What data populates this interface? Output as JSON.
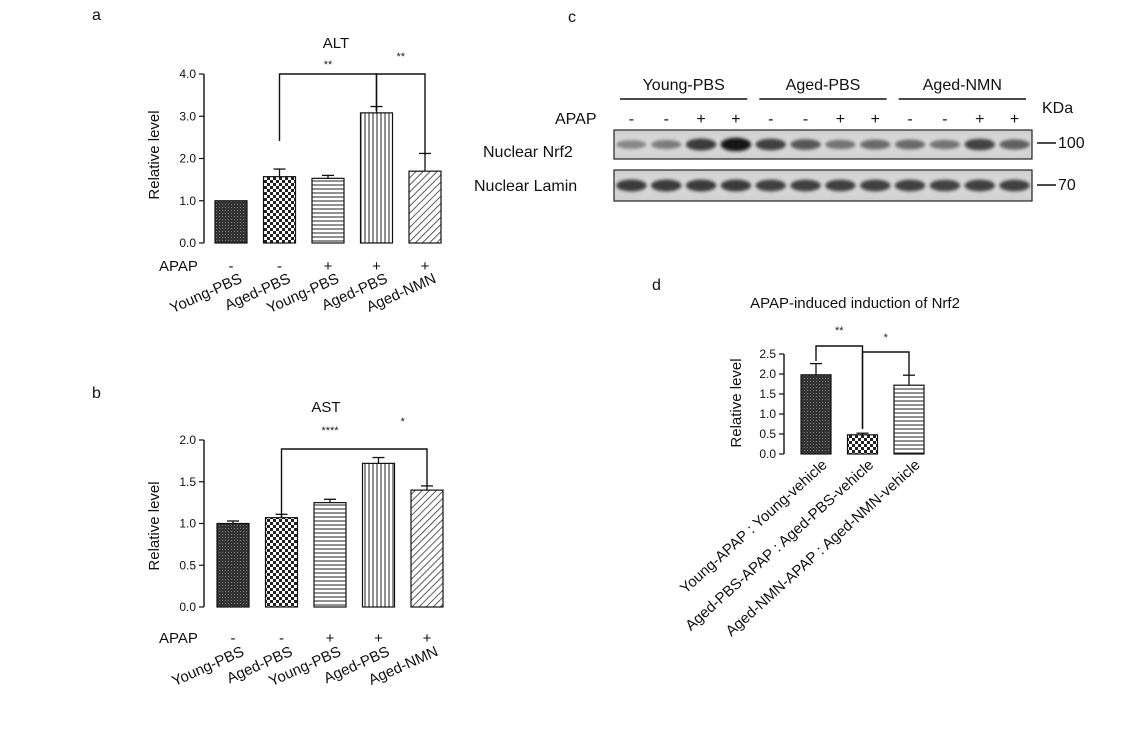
{
  "chart_data": [
    {
      "id": "a",
      "type": "bar",
      "panel_label": "a",
      "title": "ALT",
      "ylabel": "Relative level",
      "ylim": [
        0,
        4
      ],
      "yticks": [
        "0.0",
        "1.0",
        "2.0",
        "3.0",
        "4.0"
      ],
      "yticks_values": [
        0,
        1,
        2,
        3,
        4
      ],
      "categories": [
        "Young-PBS",
        "Aged-PBS",
        "Young-PBS",
        "Aged-PBS",
        "Aged-NMN"
      ],
      "values": [
        1.0,
        1.57,
        1.53,
        3.08,
        1.7
      ],
      "errors": [
        0,
        0.18,
        0.07,
        0.15,
        0.42
      ],
      "patterns": [
        "dense",
        "check",
        "hlines",
        "vlines",
        "diag"
      ],
      "treatment_label": "APAP",
      "treatment": [
        "-",
        "-",
        "+",
        "+",
        "+"
      ],
      "significance": [
        {
          "from": 1,
          "to": 3,
          "label": "**"
        },
        {
          "from": 3,
          "to": 4,
          "label": "**"
        }
      ]
    },
    {
      "id": "b",
      "type": "bar",
      "panel_label": "b",
      "title": "AST",
      "ylabel": "Relative level",
      "ylim": [
        0,
        2
      ],
      "yticks": [
        "0.0",
        "0.5",
        "1.0",
        "1.5",
        "2.0"
      ],
      "yticks_values": [
        0,
        0.5,
        1,
        1.5,
        2
      ],
      "categories": [
        "Young-PBS",
        "Aged-PBS",
        "Young-PBS",
        "Aged-PBS",
        "Aged-NMN"
      ],
      "values": [
        1.0,
        1.07,
        1.25,
        1.72,
        1.4
      ],
      "errors": [
        0.03,
        0.04,
        0.04,
        0.07,
        0.05
      ],
      "patterns": [
        "dense",
        "check",
        "hlines",
        "vlines",
        "diag"
      ],
      "treatment_label": "APAP",
      "treatment": [
        "-",
        "-",
        "+",
        "+",
        "+"
      ],
      "significance": [
        {
          "from": 1,
          "to": 3,
          "label": "****"
        },
        {
          "from": 3,
          "to": 4,
          "label": "*"
        }
      ]
    },
    {
      "id": "d",
      "type": "bar",
      "panel_label": "d",
      "title": "APAP-induced induction of Nrf2",
      "ylabel": "Relative level",
      "ylim": [
        0,
        2.5
      ],
      "yticks": [
        "0.0",
        "0.5",
        "1.0",
        "1.5",
        "2.0",
        "2.5"
      ],
      "yticks_values": [
        0,
        0.5,
        1,
        1.5,
        2,
        2.5
      ],
      "categories": [
        "Young-APAP : Young-vehicle",
        "Aged-PBS-APAP : Aged-PBS-vehicle",
        "Aged-NMN-APAP : Aged-NMN-vehicle"
      ],
      "values": [
        1.98,
        0.48,
        1.72
      ],
      "errors": [
        0.28,
        0.04,
        0.25
      ],
      "patterns": [
        "dense",
        "check",
        "hlines"
      ],
      "significance": [
        {
          "from": 0,
          "to": 1,
          "label": "**"
        },
        {
          "from": 1,
          "to": 2,
          "label": "*"
        }
      ]
    }
  ],
  "western_blot": {
    "panel_label": "c",
    "groups": [
      "Young-PBS",
      "Aged-PBS",
      "Aged-NMN"
    ],
    "apap_label": "APAP",
    "apap": [
      "-",
      "-",
      "+",
      "+",
      "-",
      "-",
      "+",
      "+",
      "-",
      "-",
      "+",
      "+"
    ],
    "kda_label": "KDa",
    "rows": [
      {
        "label": "Nuclear Nrf2",
        "kda": "100",
        "intensity": [
          0.35,
          0.4,
          0.75,
          0.95,
          0.72,
          0.6,
          0.45,
          0.5,
          0.5,
          0.45,
          0.7,
          0.55
        ]
      },
      {
        "label": "Nuclear Lamin",
        "kda": "70",
        "intensity": [
          0.75,
          0.75,
          0.75,
          0.75,
          0.72,
          0.72,
          0.72,
          0.72,
          0.72,
          0.7,
          0.72,
          0.72
        ]
      }
    ]
  }
}
